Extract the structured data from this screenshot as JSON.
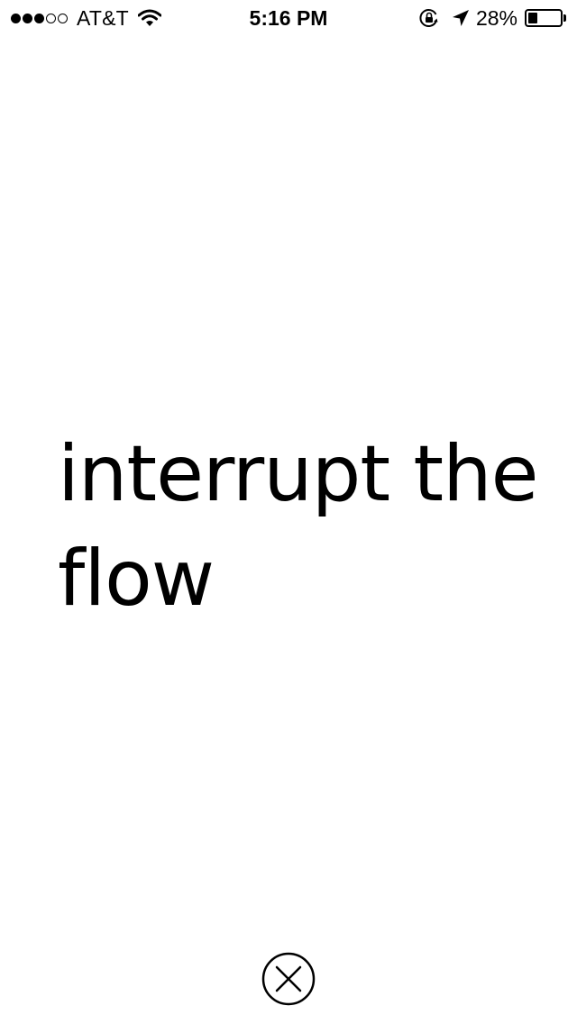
{
  "status_bar": {
    "signal_bars": {
      "filled": 3,
      "total": 5
    },
    "carrier": "AT&T",
    "time": "5:16 PM",
    "battery_percent": "28%",
    "battery_level": 0.28,
    "icons": [
      "wifi-icon",
      "rotation-lock-icon",
      "location-arrow-icon",
      "battery-icon"
    ]
  },
  "main": {
    "message": "interrupt the flow"
  },
  "close_button": {
    "icon": "close-circle-icon",
    "color": "#000000"
  }
}
